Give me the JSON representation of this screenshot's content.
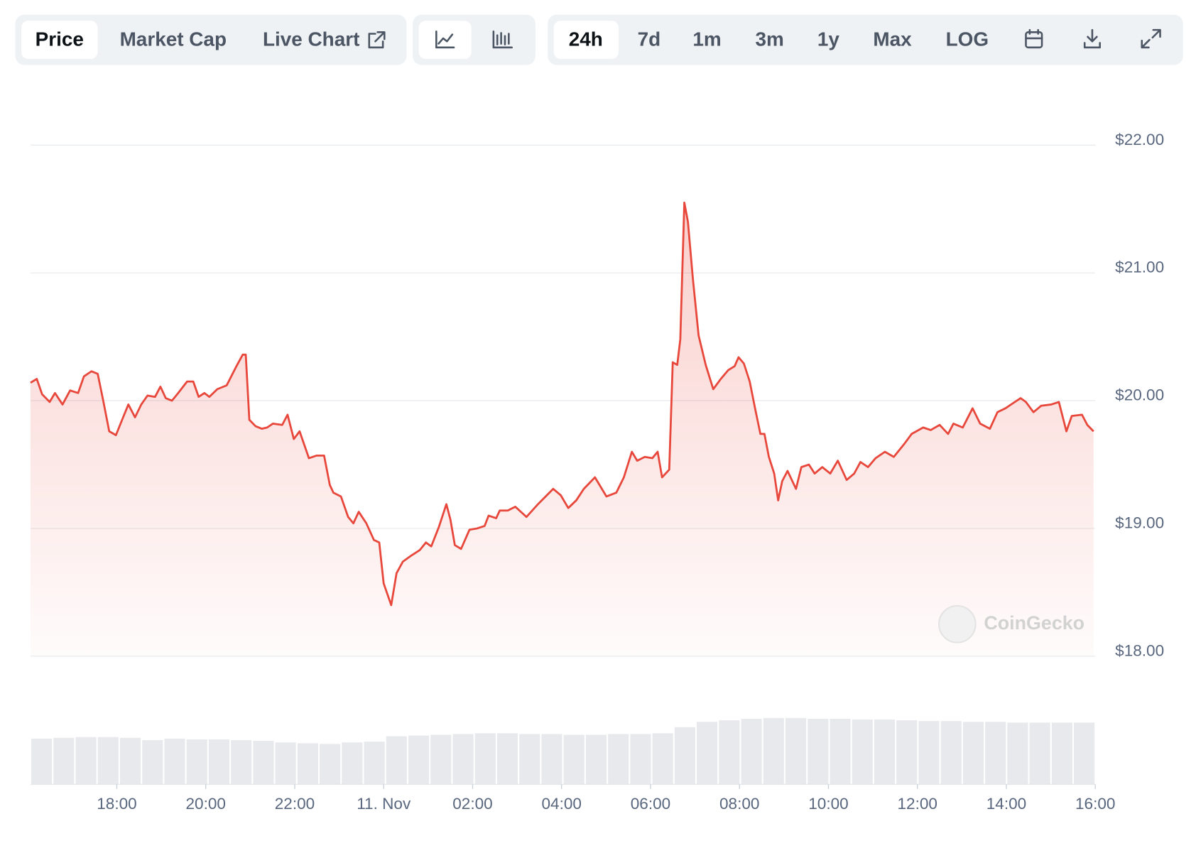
{
  "toolbar": {
    "tabs": [
      "Price",
      "Market Cap",
      "Live Chart"
    ],
    "ranges": [
      "24h",
      "7d",
      "1m",
      "3m",
      "1y",
      "Max",
      "LOG"
    ]
  },
  "watermark": "CoinGecko",
  "chart_data": {
    "type": "line",
    "color": "#e8473b",
    "grid": true,
    "x": [
      16.06,
      16.2,
      16.32,
      16.49,
      16.61,
      16.78,
      16.95,
      17.13,
      17.26,
      17.43,
      17.57,
      17.69,
      17.83,
      17.98,
      18.12,
      18.26,
      18.41,
      18.55,
      18.69,
      18.86,
      18.98,
      19.1,
      19.24,
      19.38,
      19.58,
      19.72,
      19.84,
      19.97,
      20.08,
      20.26,
      20.47,
      20.69,
      20.83,
      20.9,
      20.98,
      21.12,
      21.26,
      21.38,
      21.51,
      21.72,
      21.84,
      21.98,
      22.11,
      22.32,
      22.49,
      22.66,
      22.79,
      22.87,
      23.04,
      23.2,
      23.32,
      23.44,
      23.61,
      23.78,
      23.9,
      24.0,
      24.17,
      24.29,
      24.43,
      24.63,
      24.81,
      24.95,
      25.07,
      25.24,
      25.41,
      25.5,
      25.6,
      25.74,
      25.93,
      26.1,
      26.27,
      26.36,
      26.53,
      26.61,
      26.79,
      26.96,
      27.21,
      27.47,
      27.64,
      27.81,
      27.98,
      28.15,
      28.33,
      28.5,
      28.75,
      29.01,
      29.23,
      29.4,
      29.58,
      29.7,
      29.87,
      30.04,
      30.16,
      30.26,
      30.42,
      30.5,
      30.6,
      30.67,
      30.76,
      30.84,
      30.95,
      31.08,
      31.24,
      31.41,
      31.58,
      31.75,
      31.89,
      31.98,
      32.1,
      32.23,
      32.35,
      32.47,
      32.56,
      32.66,
      32.78,
      32.87,
      32.96,
      33.08,
      33.27,
      33.39,
      33.56,
      33.69,
      33.86,
      34.04,
      34.21,
      34.41,
      34.58,
      34.72,
      34.89,
      35.06,
      35.27,
      35.47,
      35.7,
      35.87,
      36.13,
      36.3,
      36.5,
      36.69,
      36.81,
      37.02,
      37.24,
      37.41,
      37.63,
      37.8,
      37.98,
      38.15,
      38.32,
      38.44,
      38.61,
      38.78,
      39.01,
      39.18,
      39.35,
      39.47,
      39.7,
      39.82,
      39.96
    ],
    "values": [
      20.14,
      20.17,
      20.05,
      19.99,
      20.06,
      19.97,
      20.08,
      20.06,
      20.19,
      20.23,
      20.21,
      20.01,
      19.76,
      19.73,
      19.85,
      19.97,
      19.87,
      19.97,
      20.04,
      20.03,
      20.11,
      20.02,
      20.0,
      20.06,
      20.15,
      20.15,
      20.03,
      20.06,
      20.03,
      20.09,
      20.12,
      20.27,
      20.36,
      20.36,
      19.85,
      19.8,
      19.78,
      19.79,
      19.82,
      19.81,
      19.89,
      19.7,
      19.76,
      19.55,
      19.57,
      19.57,
      19.34,
      19.28,
      19.25,
      19.09,
      19.04,
      19.13,
      19.04,
      18.91,
      18.89,
      18.57,
      18.4,
      18.65,
      18.74,
      18.79,
      18.83,
      18.89,
      18.86,
      19.01,
      19.19,
      19.07,
      18.87,
      18.84,
      18.99,
      19.0,
      19.02,
      19.1,
      19.08,
      19.14,
      19.14,
      19.17,
      19.09,
      19.19,
      19.25,
      19.31,
      19.26,
      19.16,
      19.22,
      19.31,
      19.4,
      19.25,
      19.28,
      19.4,
      19.6,
      19.53,
      19.56,
      19.55,
      19.6,
      19.4,
      19.46,
      20.3,
      20.28,
      20.48,
      21.55,
      21.4,
      20.96,
      20.51,
      20.28,
      20.09,
      20.17,
      20.24,
      20.27,
      20.34,
      20.29,
      20.15,
      19.94,
      19.74,
      19.74,
      19.56,
      19.43,
      19.22,
      19.37,
      19.45,
      19.31,
      19.48,
      19.5,
      19.43,
      19.48,
      19.43,
      19.53,
      19.38,
      19.43,
      19.52,
      19.48,
      19.55,
      19.6,
      19.56,
      19.66,
      19.74,
      19.79,
      19.77,
      19.81,
      19.74,
      19.82,
      19.79,
      19.94,
      19.82,
      19.78,
      19.91,
      19.94,
      19.98,
      20.02,
      19.99,
      19.91,
      19.96,
      19.97,
      19.99,
      19.76,
      19.88,
      19.89,
      19.81,
      19.76
    ],
    "xlim": [
      16.06,
      40.0
    ],
    "xticks": [
      {
        "value": 18,
        "label": "18:00"
      },
      {
        "value": 20,
        "label": "20:00"
      },
      {
        "value": 22,
        "label": "22:00"
      },
      {
        "value": 24,
        "label": "11. Nov"
      },
      {
        "value": 26,
        "label": "02:00"
      },
      {
        "value": 28,
        "label": "04:00"
      },
      {
        "value": 30,
        "label": "06:00"
      },
      {
        "value": 32,
        "label": "08:00"
      },
      {
        "value": 34,
        "label": "10:00"
      },
      {
        "value": 36,
        "label": "12:00"
      },
      {
        "value": 38,
        "label": "14:00"
      },
      {
        "value": 40,
        "label": "16:00"
      }
    ],
    "ylim": [
      18,
      22
    ],
    "yticks": [
      {
        "value": 18,
        "label": "$18.00"
      },
      {
        "value": 19,
        "label": "$19.00"
      },
      {
        "value": 20,
        "label": "$20.00"
      },
      {
        "value": 21,
        "label": "$21.00"
      },
      {
        "value": 22,
        "label": "$22.00"
      }
    ],
    "volume": {
      "color": "#e8e9ed",
      "ylim": [
        0,
        100
      ],
      "values": [
        60,
        61,
        62,
        62,
        61,
        58,
        60,
        59,
        59,
        58,
        57,
        55,
        54,
        53,
        55,
        56,
        63,
        64,
        65,
        66,
        67,
        67,
        66,
        66,
        65,
        65,
        66,
        66,
        67,
        75,
        82,
        84,
        86,
        87,
        87,
        86,
        86,
        85,
        85,
        84,
        83,
        83,
        82,
        82,
        81,
        81,
        81,
        81
      ]
    }
  }
}
